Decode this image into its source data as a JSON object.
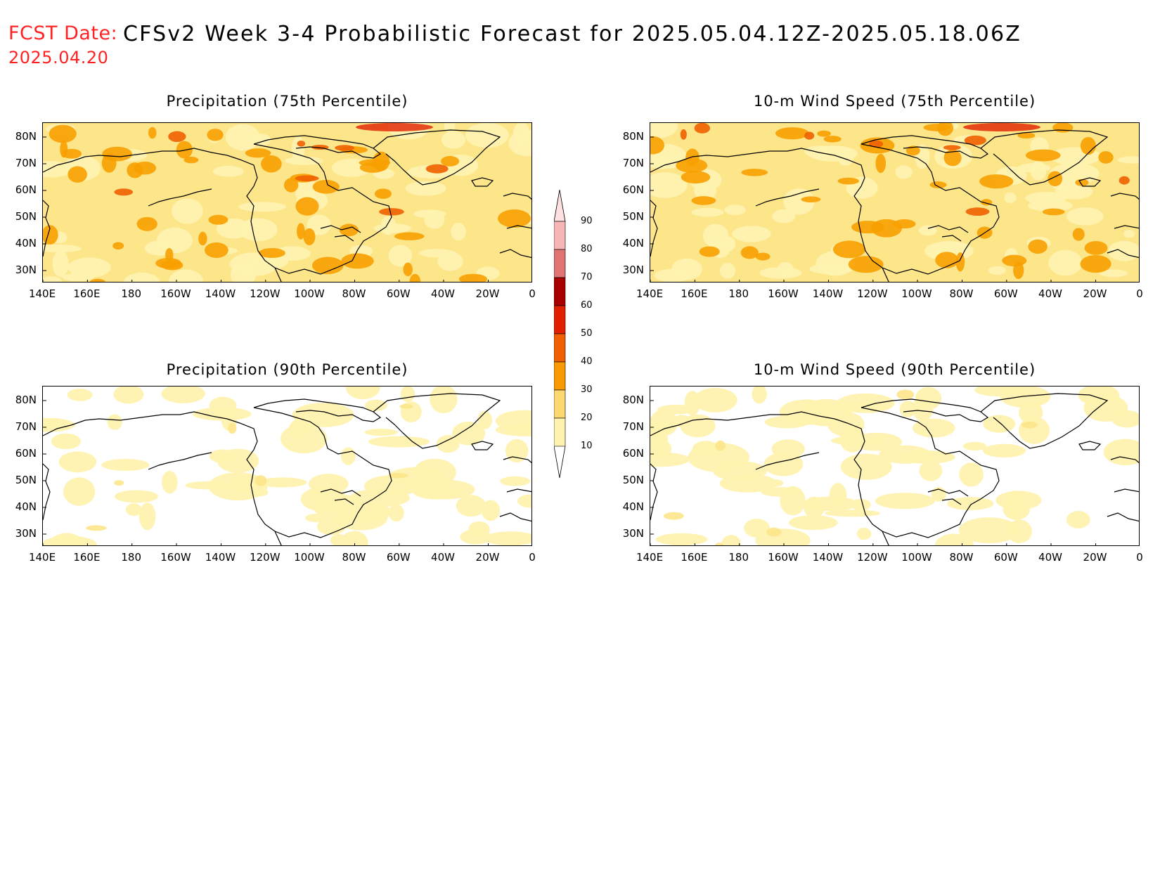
{
  "header": {
    "fcst_label": "FCST Date:",
    "fcst_date": "2025.04.20",
    "title": "CFSv2 Week 3-4 Probabilistic Forecast for 2025.05.04.12Z-2025.05.18.06Z",
    "label_color": "#ff2222"
  },
  "panels": [
    {
      "id": "precip75",
      "title": "Precipitation (75th Percentile)",
      "intensity": "high"
    },
    {
      "id": "wind75",
      "title": "10-m Wind Speed (75th Percentile)",
      "intensity": "high"
    },
    {
      "id": "precip90",
      "title": "Precipitation (90th Percentile)",
      "intensity": "low"
    },
    {
      "id": "wind90",
      "title": "10-m Wind Speed (90th Percentile)",
      "intensity": "low"
    }
  ],
  "axes": {
    "lat_labels": [
      "80N",
      "70N",
      "60N",
      "50N",
      "40N",
      "30N"
    ],
    "lon_labels": [
      "140E",
      "160E",
      "180",
      "160W",
      "140W",
      "120W",
      "100W",
      "80W",
      "60W",
      "40W",
      "20W",
      "0"
    ]
  },
  "colorbar": {
    "levels": [
      "90",
      "80",
      "70",
      "60",
      "50",
      "40",
      "30",
      "20",
      "10"
    ],
    "colors": [
      "#f6b6b6",
      "#e07474",
      "#a80000",
      "#e02000",
      "#f06000",
      "#f89a00",
      "#fcd870",
      "#fff2b0"
    ]
  }
}
